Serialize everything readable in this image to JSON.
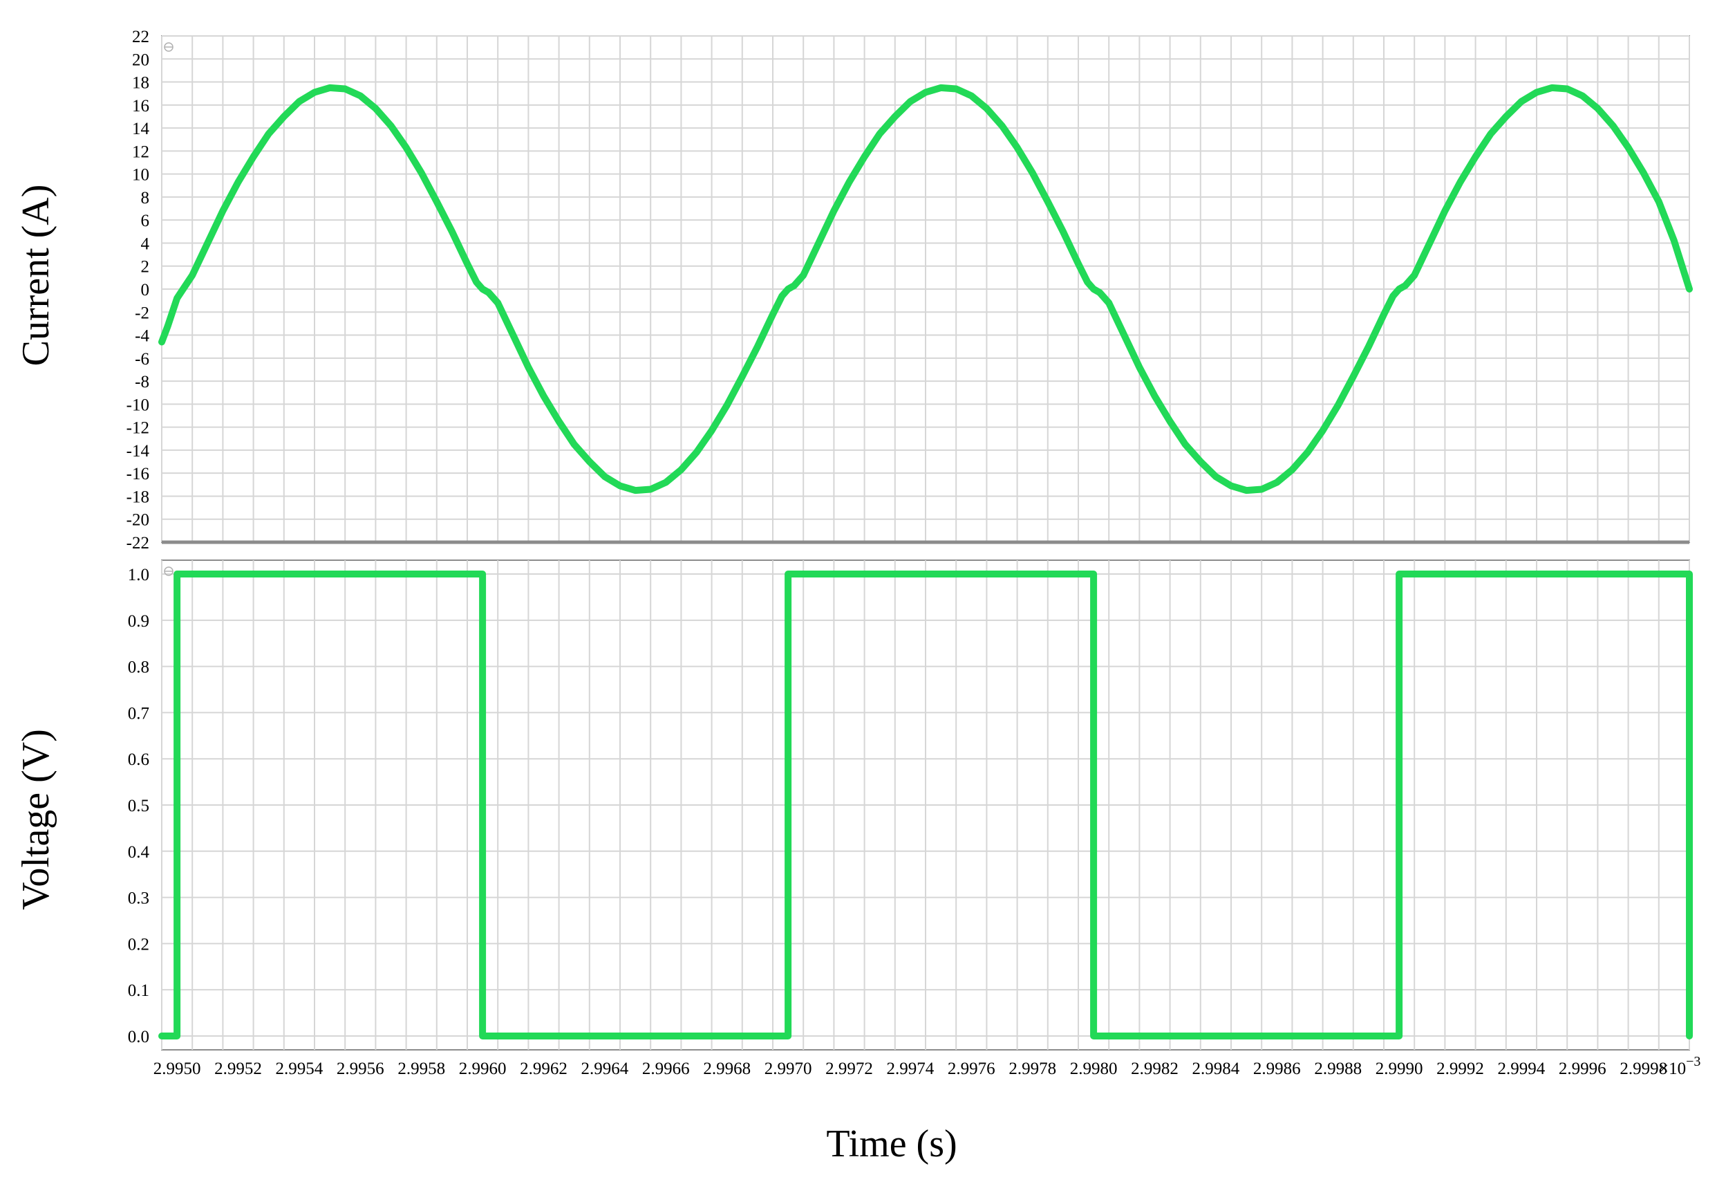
{
  "chart_data": [
    {
      "type": "line",
      "ylabel": "Current (A)",
      "ylim": [
        -22,
        22
      ],
      "yticks": [
        "22",
        "20",
        "18",
        "16",
        "14",
        "12",
        "10",
        "8",
        "6",
        "4",
        "2",
        "0",
        "-2",
        "-4",
        "-6",
        "-8",
        "-10",
        "-12",
        "-14",
        "-16",
        "-18",
        "-20",
        "-22"
      ],
      "xlim": [
        2.99495,
        2.99995
      ],
      "grid": true,
      "color": "#22d957",
      "series": [
        {
          "x": [
            2.99495,
            2.99497,
            2.995,
            2.99502,
            2.99505,
            2.9951,
            2.99515,
            2.9952,
            2.99525,
            2.9953,
            2.99535,
            2.9954,
            2.99545,
            2.9955,
            2.99555,
            2.9956,
            2.99565,
            2.9957,
            2.99575,
            2.9958,
            2.99585,
            2.9959,
            2.99595,
            2.99598,
            2.996,
            2.99602,
            2.99605,
            2.9961,
            2.99615,
            2.9962,
            2.99625,
            2.9963,
            2.99635,
            2.9964,
            2.99645,
            2.9965,
            2.99655,
            2.9966,
            2.99665,
            2.9967,
            2.99675,
            2.9968,
            2.99685,
            2.9969,
            2.99695,
            2.99698,
            2.997,
            2.99702,
            2.99705,
            2.9971,
            2.99715,
            2.9972,
            2.99725,
            2.9973,
            2.99735,
            2.9974,
            2.99745,
            2.9975,
            2.99755,
            2.9976,
            2.99765,
            2.9977,
            2.99775,
            2.9978,
            2.99785,
            2.9979,
            2.99795,
            2.99798,
            2.998,
            2.99802,
            2.99805,
            2.9981,
            2.99815,
            2.9982,
            2.99825,
            2.9983,
            2.99835,
            2.9984,
            2.99845,
            2.9985,
            2.99855,
            2.9986,
            2.99865,
            2.9987,
            2.99875,
            2.9988,
            2.99885,
            2.9989,
            2.99895,
            2.99898,
            2.999,
            2.99902,
            2.99905,
            2.9991,
            2.99915,
            2.9992,
            2.99925,
            2.9993,
            2.99935,
            2.9994,
            2.99945,
            2.9995,
            2.99955,
            2.9996,
            2.99965,
            2.9997,
            2.99975,
            2.9998,
            2.99985,
            2.9999,
            2.99995
          ],
          "y": [
            -4.6,
            -3.2,
            -0.8,
            0.0,
            1.2,
            4.0,
            6.8,
            9.3,
            11.5,
            13.5,
            15.0,
            16.3,
            17.1,
            17.5,
            17.4,
            16.8,
            15.7,
            14.2,
            12.3,
            10.1,
            7.6,
            5.0,
            2.2,
            0.6,
            0.0,
            -0.3,
            -1.2,
            -4.0,
            -6.8,
            -9.3,
            -11.5,
            -13.5,
            -15.0,
            -16.3,
            -17.1,
            -17.5,
            -17.4,
            -16.8,
            -15.7,
            -14.2,
            -12.3,
            -10.1,
            -7.6,
            -5.0,
            -2.2,
            -0.6,
            0.0,
            0.3,
            1.2,
            4.0,
            6.8,
            9.3,
            11.5,
            13.5,
            15.0,
            16.3,
            17.1,
            17.5,
            17.4,
            16.8,
            15.7,
            14.2,
            12.3,
            10.1,
            7.6,
            5.0,
            2.2,
            0.6,
            0.0,
            -0.3,
            -1.2,
            -4.0,
            -6.8,
            -9.3,
            -11.5,
            -13.5,
            -15.0,
            -16.3,
            -17.1,
            -17.5,
            -17.4,
            -16.8,
            -15.7,
            -14.2,
            -12.3,
            -10.1,
            -7.6,
            -5.0,
            -2.2,
            -0.6,
            0.0,
            0.3,
            1.2,
            4.0,
            6.8,
            9.3,
            11.5,
            13.5,
            15.0,
            16.3,
            17.1,
            17.5,
            17.4,
            16.8,
            15.7,
            14.2,
            12.3,
            10.1,
            7.6,
            4.2,
            0.0
          ]
        }
      ]
    },
    {
      "type": "line",
      "ylabel": "Voltage (V)",
      "xlabel": "Time (s)",
      "ylim": [
        -0.03,
        1.03
      ],
      "yticks": [
        "1.0",
        "0.9",
        "0.8",
        "0.7",
        "0.6",
        "0.5",
        "0.4",
        "0.3",
        "0.2",
        "0.1",
        "0.0"
      ],
      "xlim": [
        2.99495,
        2.99995
      ],
      "xticks": [
        "2.9950",
        "2.9952",
        "2.9954",
        "2.9956",
        "2.9958",
        "2.9960",
        "2.9962",
        "2.9964",
        "2.9966",
        "2.9968",
        "2.9970",
        "2.9972",
        "2.9974",
        "2.9976",
        "2.9978",
        "2.9980",
        "2.9982",
        "2.9984",
        "2.9986",
        "2.9988",
        "2.9990",
        "2.9992",
        "2.9994",
        "2.9996",
        "2.9998"
      ],
      "x_multiplier": "×10",
      "x_multiplier_exp": "−3",
      "grid": true,
      "color": "#22d957",
      "series": [
        {
          "x": [
            2.99495,
            2.995,
            2.995,
            2.996,
            2.996,
            2.997,
            2.997,
            2.998,
            2.998,
            2.999,
            2.999,
            2.99995,
            2.99995
          ],
          "y": [
            0,
            0,
            1,
            1,
            0,
            0,
            1,
            1,
            0,
            0,
            1,
            1,
            0
          ]
        }
      ]
    }
  ]
}
